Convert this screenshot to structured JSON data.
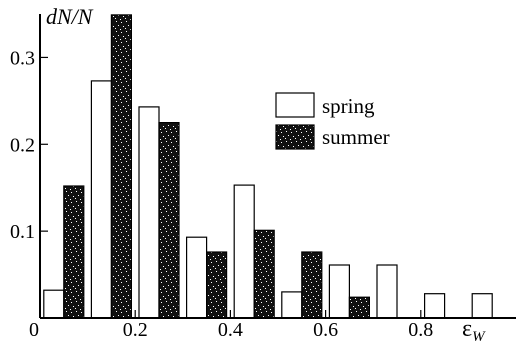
{
  "chart_data": {
    "type": "bar",
    "title": "",
    "ylabel": "dN/N",
    "xlabel": "ε",
    "xlabel_sub": "W",
    "xlim": [
      0,
      1.0
    ],
    "ylim": [
      0,
      0.35
    ],
    "x_ticks": [
      "0",
      "0.2",
      "0.4",
      "0.6",
      "0.8"
    ],
    "x_tick_values": [
      0,
      0.2,
      0.4,
      0.6,
      0.8
    ],
    "y_ticks": [
      "0.1",
      "0.2",
      "0.3"
    ],
    "y_tick_values": [
      0.1,
      0.2,
      0.3
    ],
    "bin_width": 0.1,
    "bin_centers": [
      0.05,
      0.15,
      0.25,
      0.35,
      0.45,
      0.55,
      0.65,
      0.75,
      0.85,
      0.95
    ],
    "legend_position": "top-right",
    "series": [
      {
        "name": "spring",
        "style": "open",
        "color": "#ffffff",
        "values": [
          0.032,
          0.273,
          0.243,
          0.093,
          0.153,
          0.03,
          0.061,
          0.061,
          0.028,
          0.028
        ]
      },
      {
        "name": "summer",
        "style": "speckled-dark",
        "color": "#111111",
        "values": [
          0.152,
          0.349,
          0.225,
          0.076,
          0.101,
          0.076,
          0.024,
          0,
          0,
          0
        ]
      }
    ]
  }
}
